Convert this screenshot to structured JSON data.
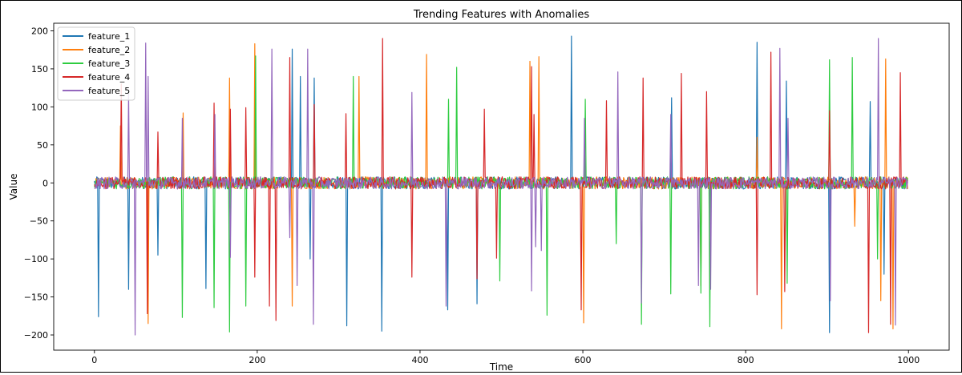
{
  "chart_data": {
    "type": "line",
    "title": "Trending Features with Anomalies",
    "xlabel": "Time",
    "ylabel": "Value",
    "xlim": [
      -50,
      1050
    ],
    "ylim": [
      -220,
      210
    ],
    "xticks": [
      0,
      200,
      400,
      600,
      800,
      1000
    ],
    "yticks": [
      -200,
      -150,
      -100,
      -50,
      0,
      50,
      100,
      150,
      200
    ],
    "grid": false,
    "legend": "top-left",
    "n_points": 1000,
    "noise_amplitude": 8,
    "series": [
      {
        "name": "feature_1",
        "color": "#1f77b4",
        "spikes": [
          [
            5,
            -176
          ],
          [
            42,
            -140
          ],
          [
            78,
            -95
          ],
          [
            137,
            -139
          ],
          [
            243,
            176
          ],
          [
            253,
            140
          ],
          [
            265,
            -100
          ],
          [
            270,
            138
          ],
          [
            310,
            -188
          ],
          [
            353,
            -195
          ],
          [
            434,
            -167
          ],
          [
            470,
            -159
          ],
          [
            586,
            193
          ],
          [
            709,
            112
          ],
          [
            814,
            185
          ],
          [
            850,
            134
          ],
          [
            903,
            -197
          ],
          [
            953,
            107
          ],
          [
            970,
            -120
          ]
        ]
      },
      {
        "name": "feature_2",
        "color": "#ff7f0e",
        "spikes": [
          [
            32,
            75
          ],
          [
            66,
            -185
          ],
          [
            109,
            92
          ],
          [
            166,
            138
          ],
          [
            197,
            183
          ],
          [
            243,
            -162
          ],
          [
            325,
            140
          ],
          [
            408,
            169
          ],
          [
            535,
            160
          ],
          [
            546,
            166
          ],
          [
            601,
            -184
          ],
          [
            745,
            -135
          ],
          [
            814,
            60
          ],
          [
            844,
            -192
          ],
          [
            934,
            -57
          ],
          [
            966,
            -155
          ],
          [
            972,
            163
          ],
          [
            981,
            -192
          ]
        ]
      },
      {
        "name": "feature_3",
        "color": "#2ecc40",
        "spikes": [
          [
            108,
            -177
          ],
          [
            147,
            -164
          ],
          [
            166,
            -196
          ],
          [
            186,
            -162
          ],
          [
            198,
            167
          ],
          [
            318,
            140
          ],
          [
            435,
            110
          ],
          [
            445,
            152
          ],
          [
            498,
            -129
          ],
          [
            556,
            -174
          ],
          [
            603,
            110
          ],
          [
            641,
            -80
          ],
          [
            672,
            -186
          ],
          [
            708,
            -146
          ],
          [
            745,
            -145
          ],
          [
            756,
            -189
          ],
          [
            851,
            -132
          ],
          [
            903,
            162
          ],
          [
            931,
            165
          ],
          [
            962,
            -100
          ]
        ]
      },
      {
        "name": "feature_4",
        "color": "#d62728",
        "spikes": [
          [
            33,
            130
          ],
          [
            65,
            -172
          ],
          [
            78,
            67
          ],
          [
            147,
            105
          ],
          [
            167,
            97
          ],
          [
            186,
            99
          ],
          [
            197,
            -124
          ],
          [
            215,
            -162
          ],
          [
            223,
            -181
          ],
          [
            240,
            165
          ],
          [
            270,
            103
          ],
          [
            309,
            91
          ],
          [
            354,
            190
          ],
          [
            390,
            -124
          ],
          [
            470,
            -126
          ],
          [
            479,
            97
          ],
          [
            494,
            -99
          ],
          [
            537,
            153
          ],
          [
            540,
            90
          ],
          [
            598,
            -167
          ],
          [
            629,
            108
          ],
          [
            674,
            138
          ],
          [
            721,
            144
          ],
          [
            752,
            120
          ],
          [
            814,
            -147
          ],
          [
            831,
            172
          ],
          [
            848,
            -143
          ],
          [
            903,
            95
          ],
          [
            951,
            -197
          ],
          [
            978,
            -186
          ],
          [
            990,
            145
          ]
        ]
      },
      {
        "name": "feature_5",
        "color": "#9467bd",
        "spikes": [
          [
            42,
            117
          ],
          [
            50,
            -200
          ],
          [
            63,
            184
          ],
          [
            66,
            140
          ],
          [
            108,
            85
          ],
          [
            148,
            90
          ],
          [
            167,
            -98
          ],
          [
            218,
            176
          ],
          [
            240,
            -72
          ],
          [
            249,
            -135
          ],
          [
            262,
            176
          ],
          [
            269,
            -186
          ],
          [
            390,
            119
          ],
          [
            432,
            -162
          ],
          [
            537,
            -142
          ],
          [
            542,
            -84
          ],
          [
            549,
            -89
          ],
          [
            602,
            85
          ],
          [
            643,
            146
          ],
          [
            672,
            -158
          ],
          [
            708,
            90
          ],
          [
            742,
            -135
          ],
          [
            757,
            -140
          ],
          [
            842,
            177
          ],
          [
            852,
            85
          ],
          [
            904,
            -155
          ],
          [
            963,
            190
          ],
          [
            984,
            -187
          ]
        ]
      }
    ]
  }
}
